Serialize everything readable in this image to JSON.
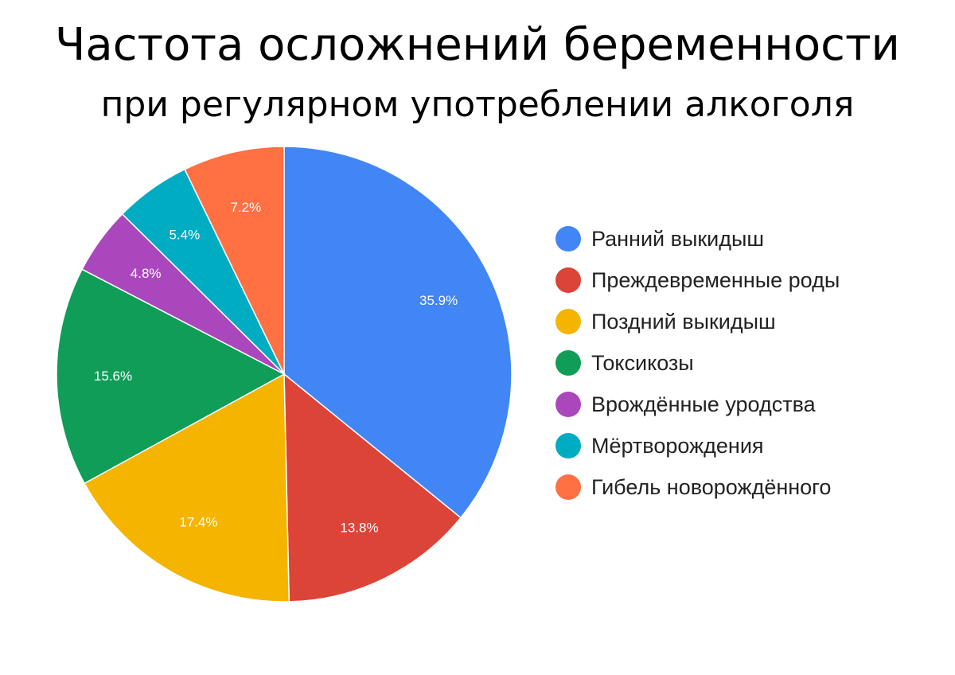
{
  "chart_data": {
    "type": "pie",
    "title": "Частота осложнений беременности",
    "subtitle": "при регулярном употреблении алкоголя",
    "legend_position": "right",
    "slices": [
      {
        "name": "Ранний выкидыш",
        "value": 35.9,
        "label": "35.9%",
        "color": "#4285F4"
      },
      {
        "name": "Преждевременные роды",
        "value": 13.8,
        "label": "13.8%",
        "color": "#DB4437"
      },
      {
        "name": "Поздний выкидыш",
        "value": 17.4,
        "label": "17.4%",
        "color": "#F4B400"
      },
      {
        "name": "Токсикозы",
        "value": 15.6,
        "label": "15.6%",
        "color": "#0F9D58"
      },
      {
        "name": "Врождённые уродства",
        "value": 4.8,
        "label": "4.8%",
        "color": "#AB47BC"
      },
      {
        "name": "Мёртворождения",
        "value": 5.4,
        "label": "5.4%",
        "color": "#00ACC1"
      },
      {
        "name": "Гибель новорождённого",
        "value": 7.2,
        "label": "7.2%",
        "color": "#FF7043"
      }
    ]
  }
}
